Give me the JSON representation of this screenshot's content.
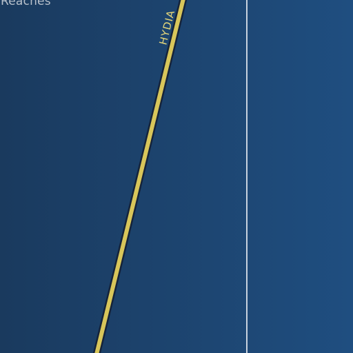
{
  "map": {
    "labels": {
      "area": "Reaches",
      "road": "HYDIA"
    },
    "colors": {
      "water_dark": "#1a3a5e",
      "water_light": "#1f4e80",
      "road_fill": "#d8c65a",
      "road_casing": "#15233a",
      "boundary_line": "#c9d3df",
      "area_label": "#b9c2cc",
      "road_label": "#e6d77a"
    }
  }
}
